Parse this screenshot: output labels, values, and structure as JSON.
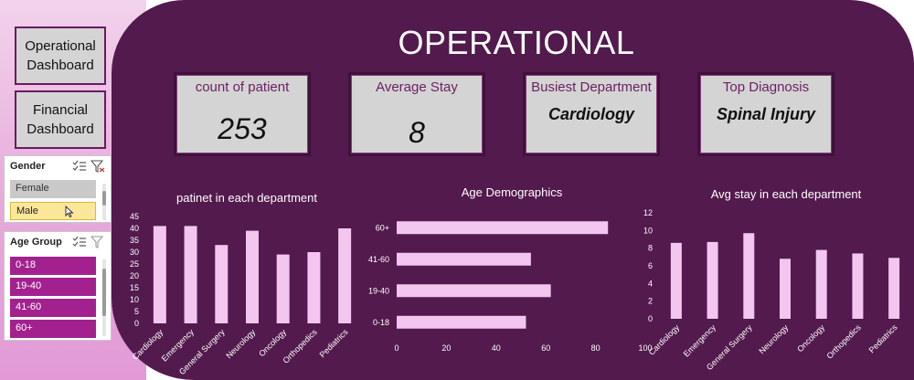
{
  "nav": {
    "operational_label": "Operational\nDashboard",
    "financial_label": "Financial\nDashboard"
  },
  "slicers": {
    "gender": {
      "title": "Gender",
      "items": [
        {
          "label": "Female",
          "selected": false
        },
        {
          "label": "Male",
          "selected": true
        }
      ]
    },
    "age_group": {
      "title": "Age Group",
      "items": [
        {
          "label": "0-18"
        },
        {
          "label": "19-40"
        },
        {
          "label": "41-60"
        },
        {
          "label": "60+"
        }
      ]
    }
  },
  "header": {
    "title": "OPERATIONAL"
  },
  "kpis": [
    {
      "label": "count of patient",
      "value": "253"
    },
    {
      "label": "Average Stay",
      "value": "8"
    },
    {
      "label": "Busiest Department",
      "value": "Cardiology"
    },
    {
      "label": "Top Diagnosis",
      "value": "Spinal Injury"
    }
  ],
  "colors": {
    "panel": "#521a4d",
    "bar": "#f2c6ee",
    "kpi_bg": "#d4d4d4",
    "slicer_pink": "#a3218f",
    "selected_yellow": "#fbe79a"
  },
  "chart_data": [
    {
      "type": "bar",
      "title": "patinet in each department",
      "categories": [
        "Cardiology",
        "Emergency",
        "General Surgery",
        "Neurology",
        "Oncology",
        "Orthopedics",
        "Pediatrics"
      ],
      "values": [
        41,
        41,
        33,
        39,
        29,
        30,
        40
      ],
      "ylim": [
        0,
        45
      ],
      "yticks": [
        "0",
        "5",
        "10",
        "15",
        "20",
        "25",
        "30",
        "35",
        "40",
        "45"
      ],
      "xlabel": "",
      "ylabel": "",
      "grid": false
    },
    {
      "type": "bar",
      "orientation": "horizontal",
      "title": "Age Demographics",
      "categories": [
        "60+",
        "41-60",
        "19-40",
        "0-18"
      ],
      "values": [
        85,
        54,
        62,
        52
      ],
      "xlim": [
        0,
        100
      ],
      "xticks": [
        "0",
        "20",
        "40",
        "60",
        "80",
        "100"
      ],
      "xlabel": "",
      "ylabel": "",
      "grid": false
    },
    {
      "type": "bar",
      "title": "Avg stay in each department",
      "categories": [
        "Cardiology",
        "Emergency",
        "General Surgery",
        "Neurology",
        "Oncology",
        "Orthopedics",
        "Pediatrics"
      ],
      "values": [
        8.6,
        8.7,
        9.7,
        6.8,
        7.8,
        7.4,
        6.9
      ],
      "ylim": [
        0,
        12
      ],
      "yticks": [
        "0",
        "2",
        "4",
        "6",
        "8",
        "10",
        "12"
      ],
      "xlabel": "",
      "ylabel": "",
      "grid": false
    }
  ]
}
